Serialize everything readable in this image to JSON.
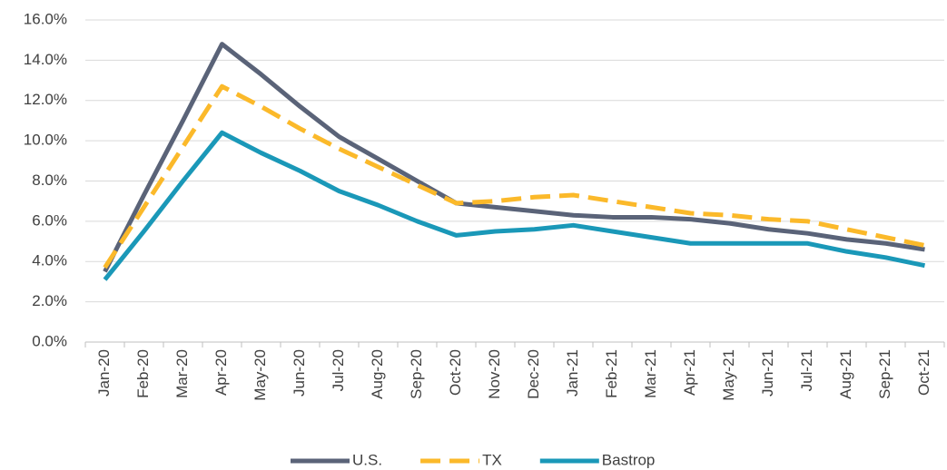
{
  "chart_data": {
    "type": "line",
    "categories": [
      "Jan-20",
      "Feb-20",
      "Mar-20",
      "Apr-20",
      "May-20",
      "Jun-20",
      "Jul-20",
      "Aug-20",
      "Sep-20",
      "Oct-20",
      "Nov-20",
      "Dec-20",
      "Jan-21",
      "Feb-21",
      "Mar-21",
      "Apr-21",
      "May-21",
      "Jun-21",
      "Jul-21",
      "Aug-21",
      "Sep-21",
      "Oct-21"
    ],
    "series": [
      {
        "name": "U.S.",
        "color": "#5a6378",
        "style": "solid",
        "values": [
          3.5,
          7.3,
          11.0,
          14.8,
          13.3,
          11.7,
          10.2,
          9.1,
          8.0,
          6.9,
          6.7,
          6.5,
          6.3,
          6.2,
          6.2,
          6.1,
          5.9,
          5.6,
          5.4,
          5.1,
          4.9,
          4.6
        ]
      },
      {
        "name": "TX",
        "color": "#fbb92a",
        "style": "dashed",
        "values": [
          3.7,
          6.7,
          9.7,
          12.7,
          11.7,
          10.6,
          9.6,
          8.7,
          7.8,
          6.9,
          7.0,
          7.2,
          7.3,
          7.0,
          6.7,
          6.4,
          6.3,
          6.1,
          6.0,
          5.6,
          5.2,
          4.8
        ]
      },
      {
        "name": "Bastrop",
        "color": "#1a98b8",
        "style": "solid",
        "values": [
          3.1,
          5.5,
          8.0,
          10.4,
          9.4,
          8.5,
          7.5,
          6.8,
          6.0,
          5.3,
          5.5,
          5.6,
          5.8,
          5.5,
          5.2,
          4.9,
          4.9,
          4.9,
          4.9,
          4.5,
          4.2,
          3.8
        ]
      }
    ],
    "ylim": [
      0,
      16
    ],
    "yticks": [
      {
        "value": 0,
        "label": "0.0%"
      },
      {
        "value": 2,
        "label": "2.0%"
      },
      {
        "value": 4,
        "label": "4.0%"
      },
      {
        "value": 6,
        "label": "6.0%"
      },
      {
        "value": 8,
        "label": "8.0%"
      },
      {
        "value": 10,
        "label": "10.0%"
      },
      {
        "value": 12,
        "label": "12.0%"
      },
      {
        "value": 14,
        "label": "14.0%"
      },
      {
        "value": 16,
        "label": "16.0%"
      }
    ],
    "grid": true,
    "legend": "bottom"
  }
}
